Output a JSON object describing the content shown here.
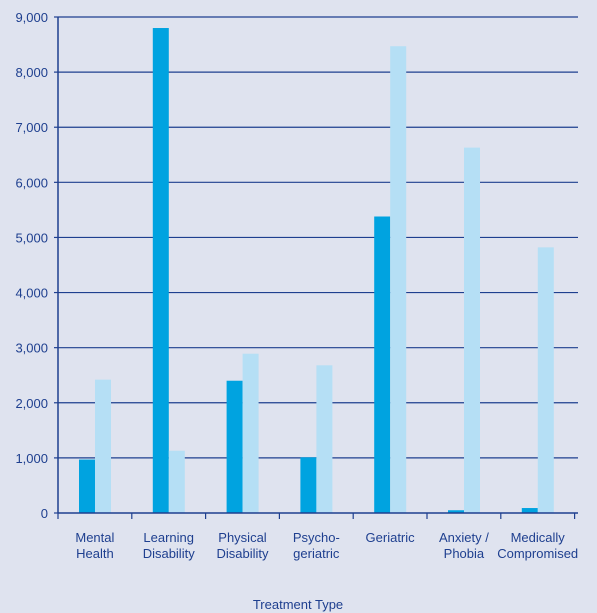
{
  "chart_data": {
    "type": "bar",
    "title": "",
    "xlabel": "Treatment Type",
    "ylabel": "",
    "ylim": [
      0,
      9000
    ],
    "yticks": [
      "0",
      "1,000",
      "2,000",
      "3,000",
      "4,000",
      "5,000",
      "6,000",
      "7,000",
      "8,000",
      "9,000"
    ],
    "ytick_values": [
      0,
      1000,
      2000,
      3000,
      4000,
      5000,
      6000,
      7000,
      8000,
      9000
    ],
    "grid": true,
    "categories": [
      [
        "Mental",
        "Health"
      ],
      [
        "Learning",
        "Disability"
      ],
      [
        "Physical",
        "Disability"
      ],
      [
        "Psycho-",
        "geriatric"
      ],
      [
        "Geriatric"
      ],
      [
        "Anxiety /",
        "Phobia"
      ],
      [
        "Medically",
        "Compromised"
      ]
    ],
    "series": [
      {
        "color": "#00a3e0",
        "values": [
          970,
          8800,
          2400,
          1010,
          5380,
          50,
          90
        ]
      },
      {
        "color": "#b5dff5",
        "values": [
          2420,
          1130,
          2890,
          2680,
          8470,
          6630,
          4820
        ]
      }
    ],
    "colors": {
      "background": "#dfe3ef",
      "axis": "#1e3f8f",
      "text": "#1e3f8f"
    }
  }
}
